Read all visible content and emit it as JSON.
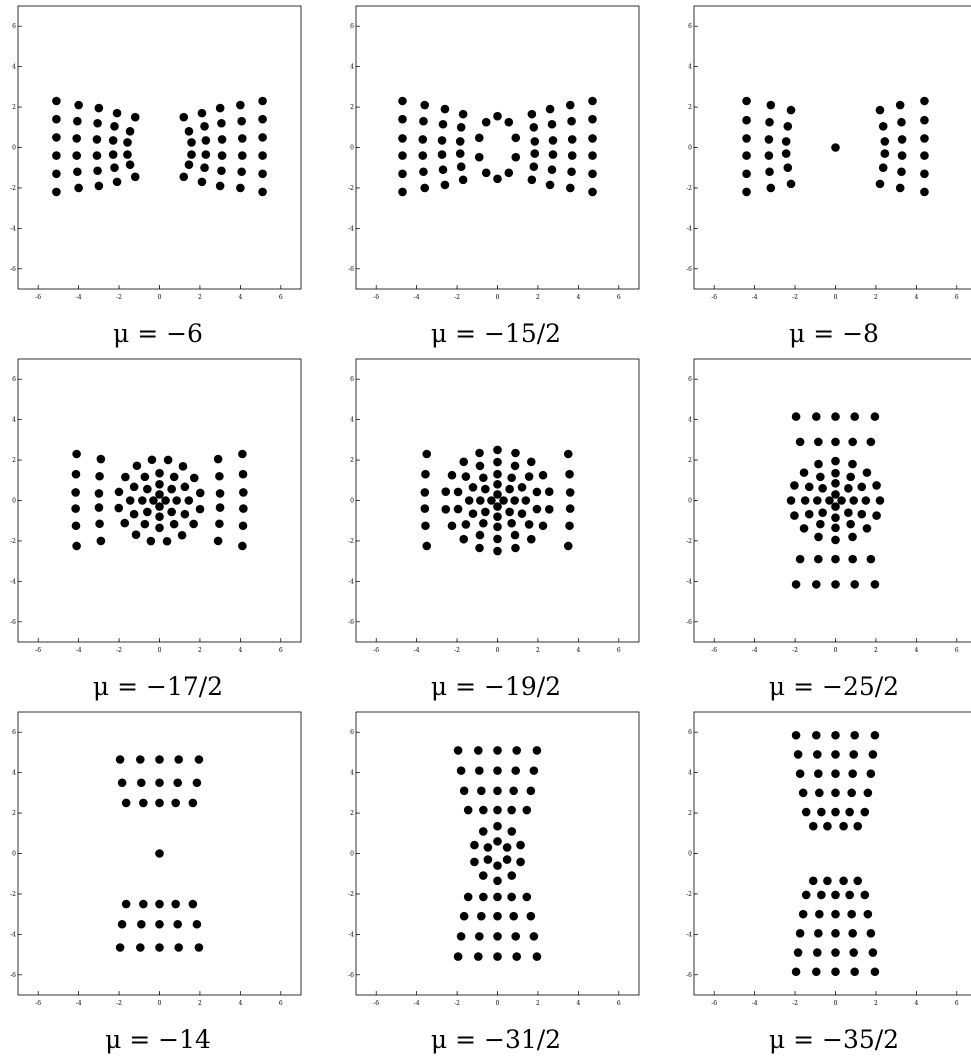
{
  "figure": {
    "axis": {
      "xlim": [
        -7,
        7
      ],
      "ylim": [
        -7,
        7
      ],
      "ticks": [
        -6,
        -4,
        -2,
        0,
        2,
        4,
        6
      ],
      "tick_labels": [
        "-6",
        "-4",
        "-2",
        "0",
        "2",
        "4",
        "6"
      ]
    },
    "marker_color": "#000000"
  },
  "chart_data": [
    {
      "type": "scatter",
      "caption": "μ = −6",
      "ylim": [
        -7,
        7
      ],
      "xlim": [
        -7,
        7
      ],
      "columns": [
        {
          "x_top": -5.1,
          "x_bottom": -5.1,
          "x_mid": -5.1,
          "y": [
            2.3,
            1.4,
            0.5,
            -0.4,
            -1.3,
            -2.2
          ]
        },
        {
          "x_top": -4.0,
          "x_bottom": -4.0,
          "x_mid": -4.1,
          "y": [
            2.1,
            1.3,
            0.45,
            -0.4,
            -1.2,
            -2.0
          ]
        },
        {
          "x_top": -3.0,
          "x_bottom": -3.0,
          "x_mid": -3.1,
          "y": [
            1.95,
            1.2,
            0.4,
            -0.4,
            -1.15,
            -1.9
          ]
        },
        {
          "x_top": -2.1,
          "x_bottom": -2.1,
          "x_mid": -2.3,
          "y": [
            1.7,
            1.05,
            0.35,
            -0.35,
            -1.0,
            -1.7
          ]
        },
        {
          "x_top": -1.2,
          "x_bottom": -1.2,
          "x_mid": -1.6,
          "y": [
            1.5,
            0.8,
            0.25,
            -0.35,
            -0.85,
            -1.45
          ]
        },
        {
          "x_top": 1.2,
          "x_bottom": 1.2,
          "x_mid": 1.6,
          "y": [
            1.5,
            0.8,
            0.25,
            -0.35,
            -0.85,
            -1.45
          ]
        },
        {
          "x_top": 2.1,
          "x_bottom": 2.1,
          "x_mid": 2.3,
          "y": [
            1.7,
            1.05,
            0.35,
            -0.35,
            -1.0,
            -1.7
          ]
        },
        {
          "x_top": 3.0,
          "x_bottom": 3.0,
          "x_mid": 3.1,
          "y": [
            1.95,
            1.2,
            0.4,
            -0.4,
            -1.15,
            -1.9
          ]
        },
        {
          "x_top": 4.0,
          "x_bottom": 4.0,
          "x_mid": 4.1,
          "y": [
            2.1,
            1.3,
            0.45,
            -0.4,
            -1.2,
            -2.0
          ]
        },
        {
          "x_top": 5.1,
          "x_bottom": 5.1,
          "x_mid": 5.1,
          "y": [
            2.3,
            1.4,
            0.5,
            -0.4,
            -1.3,
            -2.2
          ]
        }
      ],
      "rings": [],
      "points": []
    },
    {
      "type": "scatter",
      "caption": "μ = −15/2",
      "ylim": [
        -7,
        7
      ],
      "xlim": [
        -7,
        7
      ],
      "columns": [
        {
          "x_top": -4.7,
          "x_bottom": -4.7,
          "x_mid": -4.7,
          "y": [
            2.3,
            1.4,
            0.45,
            -0.4,
            -1.3,
            -2.2
          ]
        },
        {
          "x_top": -3.6,
          "x_bottom": -3.6,
          "x_mid": -3.7,
          "y": [
            2.1,
            1.3,
            0.4,
            -0.4,
            -1.2,
            -2.0
          ]
        },
        {
          "x_top": -2.6,
          "x_bottom": -2.6,
          "x_mid": -2.75,
          "y": [
            1.9,
            1.15,
            0.35,
            -0.35,
            -1.1,
            -1.85
          ]
        },
        {
          "x_top": -1.7,
          "x_bottom": -1.7,
          "x_mid": -1.85,
          "y": [
            1.65,
            1.0,
            0.3,
            -0.3,
            -0.95,
            -1.6
          ]
        },
        {
          "x_top": 1.7,
          "x_bottom": 1.7,
          "x_mid": 1.85,
          "y": [
            1.65,
            1.0,
            0.3,
            -0.3,
            -0.95,
            -1.6
          ]
        },
        {
          "x_top": 2.6,
          "x_bottom": 2.6,
          "x_mid": 2.75,
          "y": [
            1.9,
            1.15,
            0.35,
            -0.35,
            -1.1,
            -1.85
          ]
        },
        {
          "x_top": 3.6,
          "x_bottom": 3.6,
          "x_mid": 3.7,
          "y": [
            2.1,
            1.3,
            0.4,
            -0.4,
            -1.2,
            -2.0
          ]
        },
        {
          "x_top": 4.7,
          "x_bottom": 4.7,
          "x_mid": 4.7,
          "y": [
            2.3,
            1.4,
            0.45,
            -0.4,
            -1.3,
            -2.2
          ]
        }
      ],
      "rings": [
        {
          "rx": 0.95,
          "ry": 1.55,
          "n": 10,
          "phase": 90
        }
      ],
      "points": []
    },
    {
      "type": "scatter",
      "caption": "μ = −8",
      "ylim": [
        -7,
        7
      ],
      "xlim": [
        -7,
        7
      ],
      "columns": [
        {
          "x_top": -4.4,
          "x_bottom": -4.4,
          "x_mid": -4.4,
          "y": [
            2.3,
            1.35,
            0.45,
            -0.4,
            -1.3,
            -2.2
          ]
        },
        {
          "x_top": -3.2,
          "x_bottom": -3.2,
          "x_mid": -3.3,
          "y": [
            2.1,
            1.25,
            0.4,
            -0.4,
            -1.2,
            -2.0
          ]
        },
        {
          "x_top": -2.2,
          "x_bottom": -2.2,
          "x_mid": -2.45,
          "y": [
            1.85,
            1.05,
            0.3,
            -0.3,
            -1.0,
            -1.8
          ]
        },
        {
          "x_top": 2.2,
          "x_bottom": 2.2,
          "x_mid": 2.45,
          "y": [
            1.85,
            1.05,
            0.3,
            -0.3,
            -1.0,
            -1.8
          ]
        },
        {
          "x_top": 3.2,
          "x_bottom": 3.2,
          "x_mid": 3.3,
          "y": [
            2.1,
            1.25,
            0.4,
            -0.4,
            -1.2,
            -2.0
          ]
        },
        {
          "x_top": 4.4,
          "x_bottom": 4.4,
          "x_mid": 4.4,
          "y": [
            2.3,
            1.35,
            0.45,
            -0.4,
            -1.3,
            -2.2
          ]
        }
      ],
      "rings": [],
      "points": [
        [
          0,
          0
        ]
      ]
    },
    {
      "type": "scatter",
      "caption": "μ = −17/2",
      "ylim": [
        -7,
        7
      ],
      "xlim": [
        -7,
        7
      ],
      "columns": [
        {
          "x_top": -4.1,
          "x_bottom": -4.1,
          "x_mid": -4.15,
          "y": [
            2.3,
            1.3,
            0.4,
            -0.4,
            -1.25,
            -2.25
          ]
        },
        {
          "x_top": -2.9,
          "x_bottom": -2.9,
          "x_mid": -3.0,
          "y": [
            2.05,
            1.2,
            0.35,
            -0.35,
            -1.15,
            -2.0
          ]
        },
        {
          "x_top": 2.9,
          "x_bottom": 2.9,
          "x_mid": 3.0,
          "y": [
            2.05,
            1.2,
            0.35,
            -0.35,
            -1.15,
            -2.0
          ]
        },
        {
          "x_top": 4.1,
          "x_bottom": 4.1,
          "x_mid": 4.15,
          "y": [
            2.3,
            1.3,
            0.4,
            -0.4,
            -1.25,
            -2.25
          ]
        }
      ],
      "rings": [
        {
          "rx": 2.05,
          "ry": 2.05,
          "n": 16,
          "phase": 78
        },
        {
          "rx": 1.45,
          "ry": 1.35,
          "n": 12,
          "phase": 90
        },
        {
          "rx": 0.85,
          "ry": 0.8,
          "n": 8,
          "phase": 90
        },
        {
          "rx": 0.3,
          "ry": 0.3,
          "n": 4,
          "phase": 0
        }
      ],
      "points": []
    },
    {
      "type": "scatter",
      "caption": "μ = −19/2",
      "ylim": [
        -7,
        7
      ],
      "xlim": [
        -7,
        7
      ],
      "columns": [
        {
          "x_top": -3.5,
          "x_bottom": -3.5,
          "x_mid": -3.6,
          "y": [
            2.3,
            1.3,
            0.4,
            -0.4,
            -1.25,
            -2.25
          ]
        },
        {
          "x_top": 3.5,
          "x_bottom": 3.5,
          "x_mid": 3.6,
          "y": [
            2.3,
            1.3,
            0.4,
            -0.4,
            -1.25,
            -2.25
          ]
        }
      ],
      "rings": [
        {
          "rx": 2.6,
          "ry": 2.5,
          "n": 18,
          "phase": 70
        },
        {
          "rx": 2.0,
          "ry": 1.9,
          "n": 14,
          "phase": 90
        },
        {
          "rx": 1.4,
          "ry": 1.3,
          "n": 12,
          "phase": 90
        },
        {
          "rx": 0.85,
          "ry": 0.8,
          "n": 8,
          "phase": 90
        },
        {
          "rx": 0.3,
          "ry": 0.3,
          "n": 4,
          "phase": 0
        }
      ],
      "points": []
    },
    {
      "type": "scatter",
      "caption": "μ = −25/2",
      "ylim": [
        -7,
        7
      ],
      "xlim": [
        -7,
        7
      ],
      "rows": [
        {
          "y": 4.15,
          "x": [
            -1.95,
            -0.95,
            0.0,
            0.95,
            1.95
          ]
        },
        {
          "y": 2.9,
          "x": [
            -1.75,
            -0.85,
            0.0,
            0.85,
            1.75
          ]
        },
        {
          "y": -2.9,
          "x": [
            -1.75,
            -0.85,
            0.0,
            0.85,
            1.75
          ]
        },
        {
          "y": -4.15,
          "x": [
            -1.95,
            -0.95,
            0.0,
            0.95,
            1.95
          ]
        }
      ],
      "columns": [],
      "rings": [
        {
          "rx": 2.2,
          "ry": 1.95,
          "n": 16,
          "phase": 90
        },
        {
          "rx": 1.5,
          "ry": 1.35,
          "n": 12,
          "phase": 90
        },
        {
          "rx": 0.9,
          "ry": 0.85,
          "n": 8,
          "phase": 90
        },
        {
          "rx": 0.3,
          "ry": 0.3,
          "n": 4,
          "phase": 0
        }
      ],
      "points": []
    },
    {
      "type": "scatter",
      "caption": "μ = −14",
      "ylim": [
        -7,
        7
      ],
      "xlim": [
        -7,
        7
      ],
      "rows": [
        {
          "y": 4.65,
          "x": [
            -1.95,
            -0.95,
            0.0,
            0.95,
            1.95
          ]
        },
        {
          "y": 3.5,
          "x": [
            -1.85,
            -0.9,
            0.0,
            0.9,
            1.85
          ]
        },
        {
          "y": 2.5,
          "x": [
            -1.65,
            -0.8,
            0.0,
            0.8,
            1.65
          ]
        },
        {
          "y": -2.5,
          "x": [
            -1.65,
            -0.8,
            0.0,
            0.8,
            1.65
          ]
        },
        {
          "y": -3.5,
          "x": [
            -1.85,
            -0.9,
            0.0,
            0.9,
            1.85
          ]
        },
        {
          "y": -4.65,
          "x": [
            -1.95,
            -0.95,
            0.0,
            0.95,
            1.95
          ]
        }
      ],
      "columns": [],
      "rings": [],
      "points": [
        [
          0,
          0
        ]
      ]
    },
    {
      "type": "scatter",
      "caption": "μ = −31/2",
      "ylim": [
        -7,
        7
      ],
      "xlim": [
        -7,
        7
      ],
      "rows": [
        {
          "y": 5.1,
          "x": [
            -1.95,
            -0.95,
            0.0,
            0.95,
            1.95
          ]
        },
        {
          "y": 4.1,
          "x": [
            -1.8,
            -0.9,
            0.0,
            0.9,
            1.8
          ]
        },
        {
          "y": 3.1,
          "x": [
            -1.65,
            -0.8,
            0.0,
            0.8,
            1.65
          ]
        },
        {
          "y": 2.15,
          "x": [
            -1.45,
            -0.7,
            0.0,
            0.7,
            1.45
          ]
        },
        {
          "y": -2.15,
          "x": [
            -1.45,
            -0.7,
            0.0,
            0.7,
            1.45
          ]
        },
        {
          "y": -3.1,
          "x": [
            -1.65,
            -0.8,
            0.0,
            0.8,
            1.65
          ]
        },
        {
          "y": -4.1,
          "x": [
            -1.8,
            -0.9,
            0.0,
            0.9,
            1.8
          ]
        },
        {
          "y": -5.1,
          "x": [
            -1.95,
            -0.95,
            0.0,
            0.95,
            1.95
          ]
        }
      ],
      "columns": [],
      "rings": [
        {
          "rx": 1.2,
          "ry": 1.35,
          "n": 10,
          "phase": 90
        },
        {
          "rx": 0.55,
          "ry": 0.6,
          "n": 6,
          "phase": 90
        }
      ],
      "points": []
    },
    {
      "type": "scatter",
      "caption": "μ = −35/2",
      "ylim": [
        -7,
        7
      ],
      "xlim": [
        -7,
        7
      ],
      "rows": [
        {
          "y": 5.85,
          "x": [
            -1.95,
            -0.95,
            0.0,
            0.95,
            1.95
          ]
        },
        {
          "y": 4.9,
          "x": [
            -1.85,
            -0.9,
            0.0,
            0.9,
            1.85
          ]
        },
        {
          "y": 3.95,
          "x": [
            -1.75,
            -0.85,
            0.0,
            0.85,
            1.75
          ]
        },
        {
          "y": 3.0,
          "x": [
            -1.6,
            -0.8,
            0.0,
            0.8,
            1.6
          ]
        },
        {
          "y": 2.05,
          "x": [
            -1.45,
            -0.7,
            0.0,
            0.7,
            1.45
          ]
        },
        {
          "y": 1.35,
          "x": [
            -1.1,
            -0.4,
            0.4,
            1.1
          ]
        },
        {
          "y": -1.35,
          "x": [
            -1.1,
            -0.4,
            0.4,
            1.1
          ]
        },
        {
          "y": -2.05,
          "x": [
            -1.45,
            -0.7,
            0.0,
            0.7,
            1.45
          ]
        },
        {
          "y": -3.0,
          "x": [
            -1.6,
            -0.8,
            0.0,
            0.8,
            1.6
          ]
        },
        {
          "y": -3.95,
          "x": [
            -1.75,
            -0.85,
            0.0,
            0.85,
            1.75
          ]
        },
        {
          "y": -4.9,
          "x": [
            -1.85,
            -0.9,
            0.0,
            0.9,
            1.85
          ]
        },
        {
          "y": -5.85,
          "x": [
            -1.95,
            -0.95,
            0.0,
            0.95,
            1.95
          ]
        }
      ],
      "columns": [],
      "rings": [],
      "points": []
    }
  ]
}
